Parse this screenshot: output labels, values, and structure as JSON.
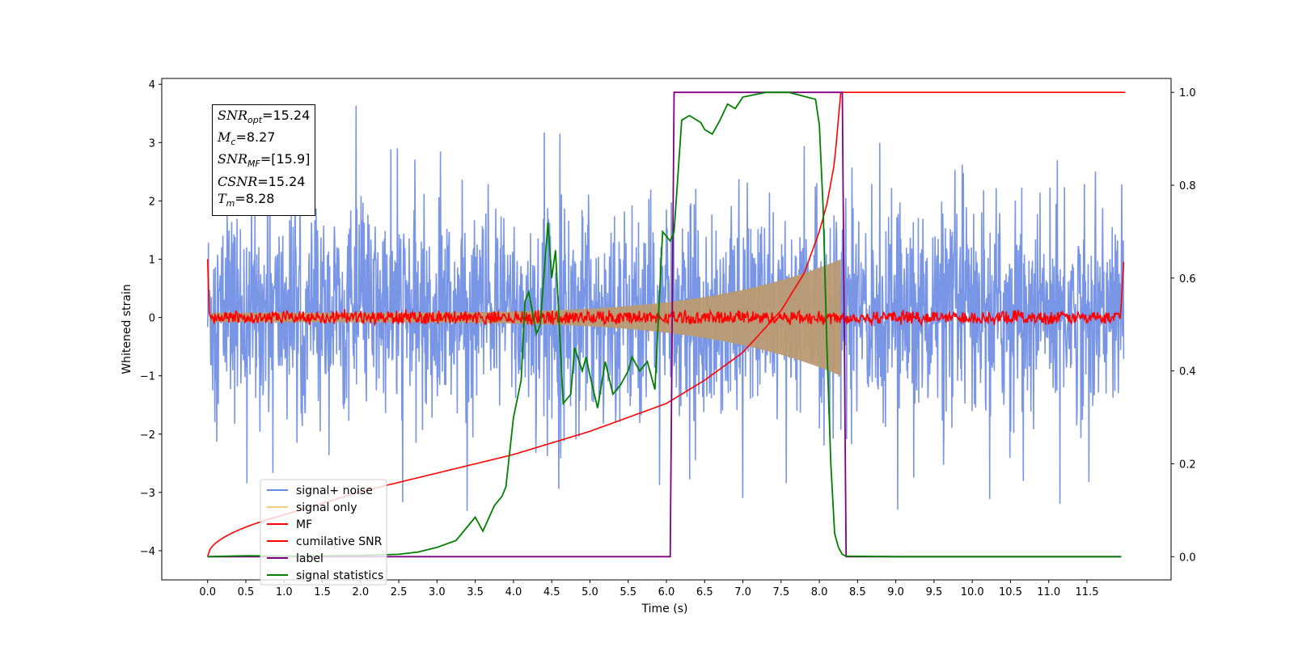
{
  "chart_data": {
    "type": "line",
    "xlabel": "Time (s)",
    "ylabel": "Whitened strain",
    "xlim": [
      -0.6,
      12.6
    ],
    "ylim": [
      -4.5,
      4.1
    ],
    "y2lim": [
      -0.05,
      1.03
    ],
    "x_ticks": [
      "0.0",
      "0.5",
      "1.0",
      "1.5",
      "2.0",
      "2.5",
      "3.0",
      "3.5",
      "4.0",
      "4.5",
      "5.0",
      "5.5",
      "6.0",
      "6.5",
      "7.0",
      "7.5",
      "8.0",
      "8.5",
      "9.0",
      "9.5",
      "10.0",
      "10.5",
      "11.0",
      "11.5"
    ],
    "y_ticks": [
      "4",
      "3",
      "2",
      "1",
      "0",
      "−1",
      "−2",
      "−3",
      "−4"
    ],
    "y2_ticks": [
      "1.0",
      "0.8",
      "0.6",
      "0.4",
      "0.2",
      "0.0"
    ],
    "legend_position": "lower-left",
    "annotation": {
      "snr_opt": "=15.24",
      "mc": "=8.27",
      "snr_mf": "=[15.9]",
      "csnr": "=15.24",
      "tm": "=8.28"
    },
    "colors": {
      "signal_noise": "#6a89e2",
      "signal_only": "#bb9a72",
      "mf": "#ff0000",
      "cumulative": "#ff0000",
      "label": "#800080",
      "statistics": "#008000"
    },
    "series": [
      {
        "name": "signal+ noise",
        "description": "whitened strain noise with peak amplitude about ±2 (spikes to ±3.7), time 0–12 s"
      },
      {
        "name": "signal only",
        "chirp_end_time": 8.28,
        "max_amplitude": 1.0
      },
      {
        "name": "MF",
        "baseline": 0.0,
        "noise_amplitude": 0.1
      },
      {
        "name": "cumilative SNR",
        "axis": "right",
        "x": [
          0,
          1,
          2,
          3,
          4,
          5,
          5.5,
          6,
          6.5,
          7,
          7.5,
          7.8,
          8.0,
          8.1,
          8.2,
          8.28,
          12
        ],
        "y": [
          0.0,
          0.09,
          0.14,
          0.18,
          0.22,
          0.27,
          0.3,
          0.33,
          0.38,
          0.44,
          0.53,
          0.61,
          0.7,
          0.76,
          0.85,
          1.0,
          1.0
        ]
      },
      {
        "name": "label",
        "axis": "right",
        "x": [
          0,
          6.05,
          6.1,
          8.3,
          8.35,
          11.95
        ],
        "y": [
          0,
          0,
          1,
          1,
          0,
          0
        ]
      },
      {
        "name": "signal statistics",
        "axis": "right",
        "x": [
          0,
          0.5,
          1.0,
          1.5,
          2.0,
          2.5,
          2.75,
          3.0,
          3.25,
          3.5,
          3.6,
          3.75,
          3.85,
          3.9,
          4.0,
          4.1,
          4.15,
          4.2,
          4.3,
          4.35,
          4.45,
          4.5,
          4.55,
          4.65,
          4.75,
          4.8,
          4.9,
          4.95,
          5.0,
          5.1,
          5.2,
          5.3,
          5.4,
          5.5,
          5.55,
          5.65,
          5.75,
          5.85,
          5.95,
          6.05,
          6.1,
          6.2,
          6.3,
          6.45,
          6.5,
          6.6,
          6.7,
          6.8,
          6.9,
          7.0,
          7.3,
          7.6,
          7.95,
          8.0,
          8.05,
          8.1,
          8.15,
          8.2,
          8.25,
          8.3,
          8.35,
          9,
          10,
          11,
          11.95
        ],
        "y": [
          0,
          0.002,
          0.001,
          0.002,
          0.003,
          0.005,
          0.01,
          0.02,
          0.035,
          0.085,
          0.055,
          0.11,
          0.13,
          0.15,
          0.3,
          0.38,
          0.55,
          0.57,
          0.48,
          0.5,
          0.72,
          0.6,
          0.66,
          0.33,
          0.35,
          0.45,
          0.4,
          0.43,
          0.39,
          0.32,
          0.42,
          0.35,
          0.37,
          0.4,
          0.43,
          0.4,
          0.42,
          0.36,
          0.7,
          0.68,
          0.7,
          0.94,
          0.95,
          0.935,
          0.92,
          0.91,
          0.94,
          0.975,
          0.965,
          0.99,
          1.0,
          1.0,
          0.985,
          0.93,
          0.75,
          0.45,
          0.2,
          0.05,
          0.02,
          0.005,
          0.001,
          0.0,
          0.0,
          0.0,
          0.0
        ]
      }
    ]
  }
}
